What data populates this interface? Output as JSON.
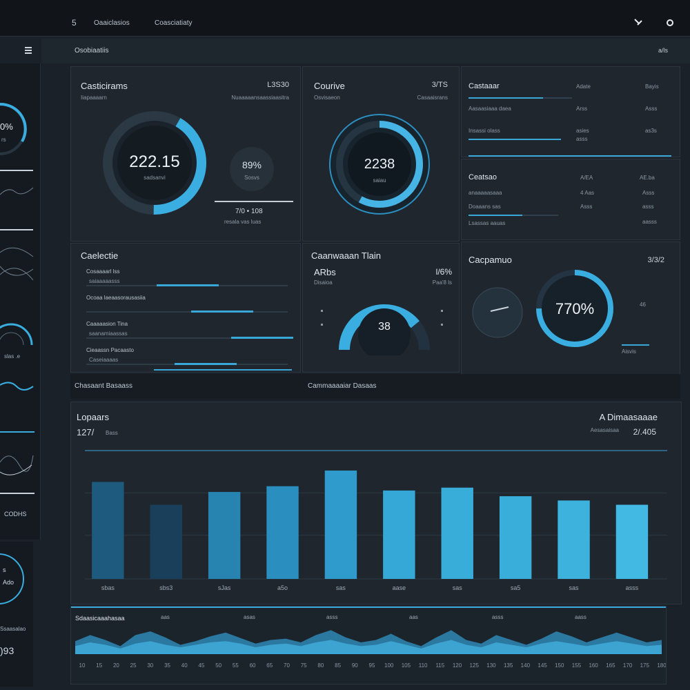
{
  "topbar": {
    "logo": "5",
    "tab1": "Oaaiclasios",
    "tab2": "Coasciatiaty"
  },
  "subbar": {
    "menu_icon": "menu-icon",
    "title": "Osobiaatiis",
    "right": "a/ls"
  },
  "sidebar": {
    "gauge_value": "0%",
    "gauge_label": "rs",
    "item_a": "slas .e",
    "item_b": "CODHS",
    "bottom_value1": "s",
    "bottom_value2": "Ado",
    "bottom_label": "Ssaasalao",
    "bottom_value3": ")93"
  },
  "panel1": {
    "title": "Casticirams",
    "right_value": "L3S30",
    "subtitle": "Iiapaaaarn",
    "subtitle_right": "Nuaaaaansaassiaasitra",
    "gauge_value": "222.15",
    "gauge_sub": "sadsanvi",
    "gauge_fill": 0.42,
    "mini_value": "89%",
    "mini_label": "Sosvs",
    "foot_values": "7/0 • 108",
    "foot_labels": "resala  vas  luas"
  },
  "panel2": {
    "title": "Courive",
    "right_value": "3/TS",
    "subtitle": "Osvisaeon",
    "subtitle_right": "Casaaisrans",
    "gauge_value": "2238",
    "gauge_sub": "saiau",
    "gauge_fill": 0.58
  },
  "panel3": {
    "header": "Castaaar",
    "col1": "Adate",
    "col2": "Bayis",
    "rows": [
      {
        "label": "Aasaasiaaa daea",
        "v1": "Arss",
        "v2": "Asss"
      },
      {
        "label": "Insassi olass",
        "v1": "asies",
        "v2": "as3s"
      },
      {
        "label": "",
        "v1": "asss",
        "v2": ""
      }
    ],
    "fill": 0.72
  },
  "panel4": {
    "title": "Ceatsao",
    "col1": "A/EA",
    "col2": "AE.ba",
    "rows": [
      {
        "label": "anaaaaasaaa",
        "v1": "4 Aas",
        "v2": "Asss"
      },
      {
        "label": "Doaaans sas",
        "v1": "Asss",
        "v2": "asss"
      },
      {
        "label": "Lsassas aauas",
        "v1": "",
        "v2": "aasss"
      }
    ],
    "fill": 0.6
  },
  "panel5": {
    "title": "Caelectie",
    "rows": [
      {
        "label": "Cosaaaarl lss",
        "sub": "saiaaaaasss",
        "fill": 0.35
      },
      {
        "label": "Ocoaa laeaasorausasiia",
        "sub": "",
        "fill": 0.52
      },
      {
        "label": "Caaaaasion Tina",
        "sub": "saanamiaassas",
        "fill": 0.72
      },
      {
        "label": "Cieaassn Pacaasto",
        "sub": "Caseiaaaas",
        "fill": 0.44
      }
    ]
  },
  "panel6": {
    "title": "Caanwaaan Tlain",
    "value_left": "ARbs",
    "label_left": "Disaioa",
    "value_right": "l/6%",
    "label_right": "Paa'8 ls",
    "gauge_value": "38",
    "gauge_fill": 0.78
  },
  "panel7": {
    "title": "Cacpamuo",
    "right_value": "3/3/2",
    "gauge_value": "770%",
    "gauge_fill": 0.75,
    "mini_value": "46",
    "mini_label": "Aisvis"
  },
  "section_labels": {
    "left": "Chasaant Basaass",
    "middle": "Cammaaaaiar Dasaas"
  },
  "chart_data": [
    {
      "type": "bar",
      "title": "Lopaars",
      "subtitle_value": "127/",
      "subtitle_label": "Bass",
      "top_right_title": "A Dimaasaaae",
      "top_right_sub": "Aesasaisaa",
      "top_right_value": "2/.405",
      "categories": [
        "sbas",
        "sbs3",
        "sJas",
        "a5o",
        "sas",
        "aase",
        "sas",
        "sa5",
        "sas",
        "asss"
      ],
      "values": [
        68,
        52,
        61,
        65,
        76,
        62,
        64,
        58,
        55,
        52
      ],
      "ylim": [
        0,
        90
      ],
      "colors": [
        "#1d5a7d",
        "#1a3f5a",
        "#2784b0",
        "#2a8fbe",
        "#2f9bcc",
        "#36a8d8",
        "#38add9",
        "#3aaeda",
        "#3cb2dd",
        "#41b9e3"
      ]
    },
    {
      "type": "area",
      "title": "Sdaasicaaahasaa",
      "header_ticks": [
        "aas",
        "asas",
        "asss",
        "aas",
        "asss",
        "aass"
      ],
      "x_ticks": [
        "10",
        "15",
        "20",
        "25",
        "30",
        "35",
        "40",
        "45",
        "50",
        "55",
        "60",
        "65",
        "70",
        "75",
        "80",
        "85",
        "90",
        "95",
        "100",
        "105",
        "110",
        "115",
        "120",
        "125",
        "130",
        "135",
        "140",
        "145",
        "150",
        "155",
        "160",
        "165",
        "170",
        "175",
        "180"
      ],
      "series": [
        {
          "values": [
            20,
            30,
            22,
            12,
            30,
            36,
            26,
            14,
            20,
            28,
            34,
            25,
            16,
            22,
            24,
            18,
            30,
            38,
            26,
            18,
            22,
            32,
            20,
            12,
            26,
            38,
            22,
            16,
            30,
            22,
            14,
            24,
            36,
            28,
            18,
            26,
            34,
            26,
            18,
            22
          ]
        },
        {
          "values": [
            12,
            18,
            14,
            8,
            16,
            20,
            14,
            10,
            14,
            18,
            20,
            16,
            10,
            14,
            16,
            12,
            18,
            22,
            16,
            12,
            14,
            20,
            14,
            8,
            16,
            22,
            14,
            10,
            18,
            14,
            10,
            16,
            20,
            16,
            12,
            16,
            20,
            16,
            12,
            14
          ]
        }
      ],
      "ylim": [
        0,
        45
      ]
    }
  ]
}
